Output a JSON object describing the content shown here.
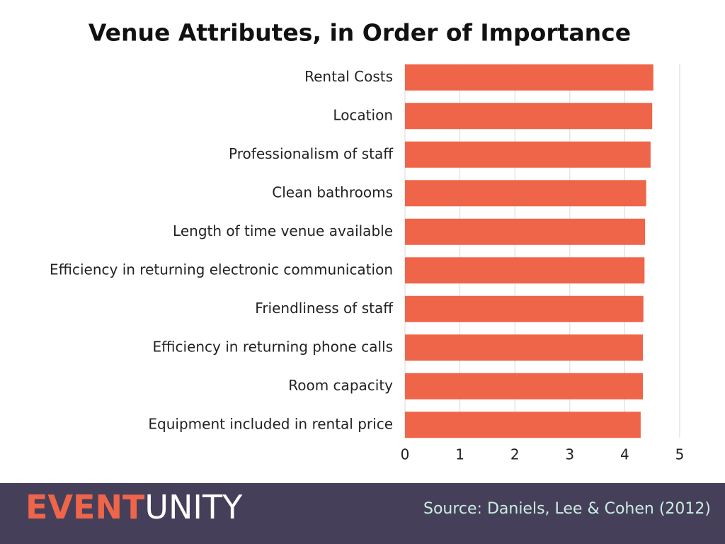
{
  "chart_data": {
    "type": "hbar",
    "title": "Venue Attributes, in Order of Importance",
    "categories": [
      "Rental Costs",
      "Location",
      "Professionalism of staff",
      "Clean bathrooms",
      "Length of time venue available",
      "Efficiency in returning electronic communication",
      "Friendliness of staff",
      "Efficiency in returning phone calls",
      "Room capacity",
      "Equipment included in rental price"
    ],
    "values": [
      4.52,
      4.5,
      4.47,
      4.39,
      4.37,
      4.36,
      4.34,
      4.33,
      4.33,
      4.29
    ],
    "color": "#ef6549",
    "xlim": [
      0,
      5
    ],
    "xticks": [
      0,
      1,
      2,
      3,
      4,
      5
    ],
    "grid": true
  },
  "footer": {
    "logo": [
      "EVENT",
      "UNITY"
    ],
    "source": "Source: Daniels, Lee & Cohen (2012)"
  }
}
